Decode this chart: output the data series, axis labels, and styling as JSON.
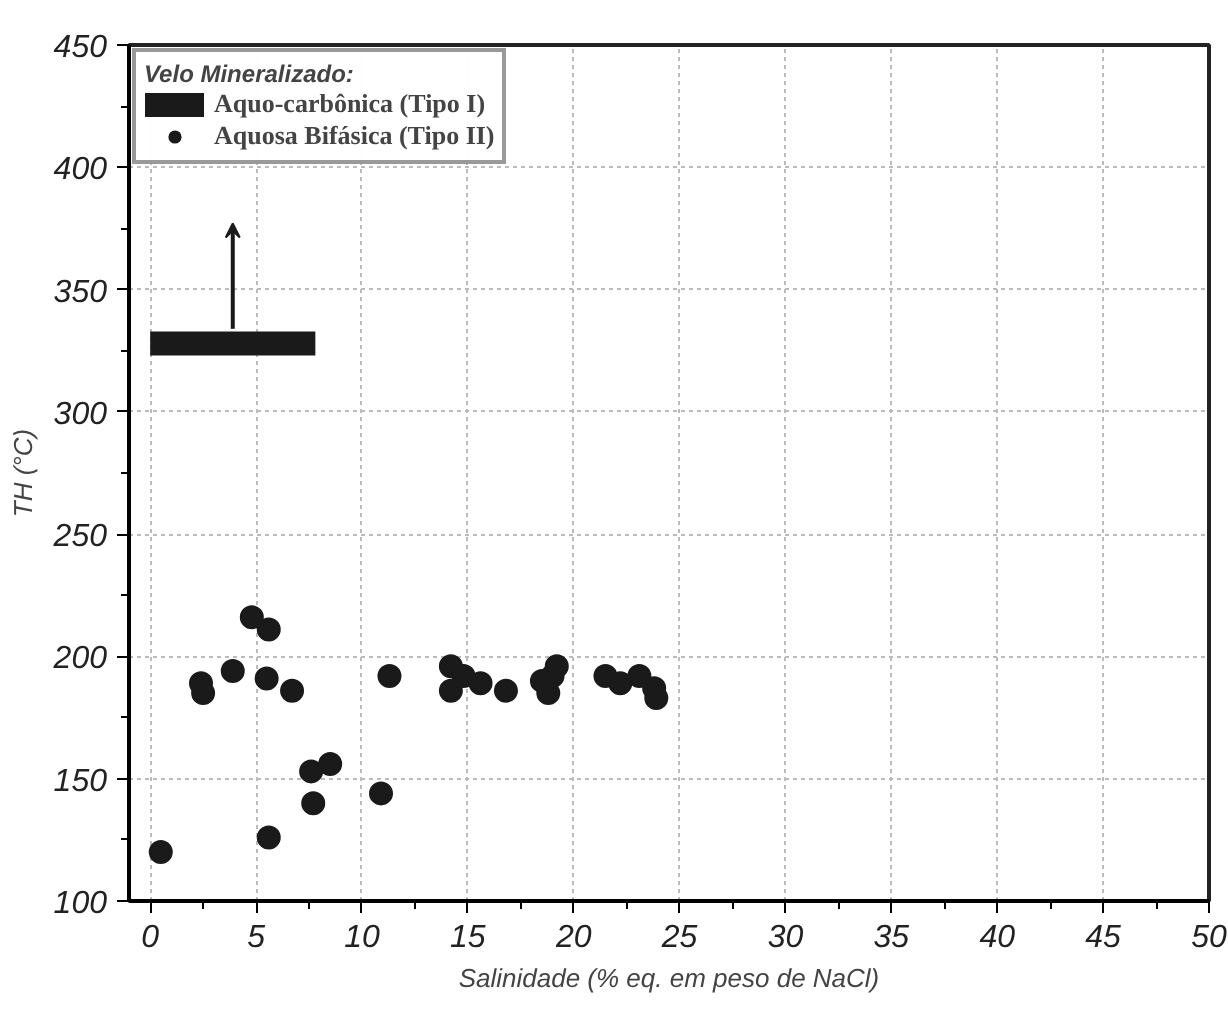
{
  "chart_data": {
    "type": "scatter",
    "xlabel": "Salinidade (% eq. em peso de NaCl)",
    "ylabel": "TH (°C)",
    "legend_title": "Velo Mineralizado:",
    "xlim": [
      -1,
      50
    ],
    "xticks": [
      0,
      5,
      10,
      15,
      20,
      25,
      30,
      35,
      40,
      45,
      50
    ],
    "ylim": [
      100,
      450
    ],
    "yticks": [
      100,
      150,
      200,
      250,
      300,
      350,
      400,
      450
    ],
    "grid": true,
    "legend": "top left",
    "marker": "circle",
    "series": [
      {
        "name": "Aquo-carbônica (Tipo I)",
        "type": "line",
        "marker": "none",
        "color": "#1a1a1a",
        "x": [
          0,
          7.8
        ],
        "values": [
          328,
          328
        ]
      },
      {
        "name": "Aquosa Bifásica (Tipo II)",
        "color": "#1a1a1a",
        "x": [
          0.5,
          2.4,
          2.5,
          3.9,
          4.8,
          5.6,
          5.5,
          5.6,
          6.7,
          7.6,
          8.5,
          7.7,
          10.9,
          11.3,
          14.2,
          14.2,
          14.8,
          15.6,
          16.8,
          18.5,
          18.8,
          19.0,
          19.2,
          21.5,
          22.2,
          23.1,
          23.8,
          23.9
        ],
        "values": [
          120,
          189,
          185,
          194,
          216,
          211,
          191,
          126,
          186,
          153,
          156,
          140,
          144,
          192,
          196,
          186,
          192,
          189,
          186,
          190,
          185,
          192,
          196,
          192,
          189,
          192,
          187,
          183
        ]
      }
    ]
  }
}
